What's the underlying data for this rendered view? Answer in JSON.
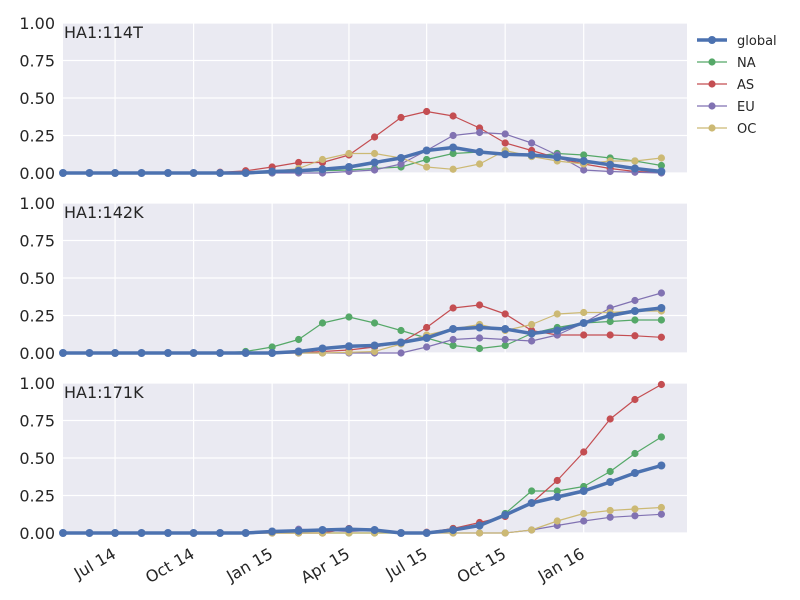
{
  "chart_data": {
    "type": "line",
    "x": [
      "2014-05-01",
      "2014-06-01",
      "2014-07-01",
      "2014-08-01",
      "2014-09-01",
      "2014-10-01",
      "2014-11-01",
      "2014-12-01",
      "2015-01-01",
      "2015-02-01",
      "2015-03-01",
      "2015-04-01",
      "2015-05-01",
      "2015-06-01",
      "2015-07-01",
      "2015-08-01",
      "2015-09-01",
      "2015-10-01",
      "2015-11-01",
      "2015-12-01",
      "2016-01-01",
      "2016-02-01",
      "2016-03-01",
      "2016-04-01"
    ],
    "x_ticks": [
      {
        "date": "2014-07-01",
        "label": "Jul 14"
      },
      {
        "date": "2014-10-01",
        "label": "Oct 14"
      },
      {
        "date": "2015-01-01",
        "label": "Jan 15"
      },
      {
        "date": "2015-04-01",
        "label": "Apr 15"
      },
      {
        "date": "2015-07-01",
        "label": "Jul 15"
      },
      {
        "date": "2015-10-01",
        "label": "Oct 15"
      },
      {
        "date": "2016-01-01",
        "label": "Jan 16"
      }
    ],
    "xlim": [
      "2014-05-01",
      "2016-05-01"
    ],
    "ylim": [
      0,
      1
    ],
    "y_ticks": [
      "0.00",
      "0.25",
      "0.50",
      "0.75",
      "1.00"
    ],
    "grid": true,
    "legend_position": "top-right, outside",
    "legend": [
      "global",
      "NA",
      "AS",
      "EU",
      "OC"
    ],
    "colors": {
      "global": "#4c72b0",
      "NA": "#55a868",
      "AS": "#c44e52",
      "EU": "#8172b2",
      "OC": "#ccb974"
    },
    "panels": [
      {
        "title": "HA1:114T",
        "series": [
          {
            "name": "global",
            "values": [
              0,
              0,
              0,
              0,
              0,
              0,
              0,
              0,
              0.01,
              0.015,
              0.025,
              0.04,
              0.07,
              0.1,
              0.15,
              0.17,
              0.14,
              0.125,
              0.12,
              0.105,
              0.08,
              0.055,
              0.03,
              0.01
            ]
          },
          {
            "name": "NA",
            "values": [
              0,
              0,
              0,
              0,
              0,
              0,
              0,
              0,
              0,
              0.01,
              0.015,
              0.02,
              0.03,
              0.04,
              0.09,
              0.13,
              0.14,
              0.13,
              0.11,
              0.13,
              0.12,
              0.1,
              0.08,
              0.05
            ]
          },
          {
            "name": "AS",
            "values": [
              0,
              0,
              0,
              0,
              0,
              0,
              0.005,
              0.015,
              0.04,
              0.07,
              0.07,
              0.12,
              0.24,
              0.37,
              0.41,
              0.38,
              0.3,
              0.2,
              0.15,
              0.1,
              0.06,
              0.03,
              0.01,
              0.005
            ]
          },
          {
            "name": "EU",
            "values": [
              0,
              0,
              0,
              0,
              0,
              0,
              0,
              0,
              0,
              0,
              0,
              0.01,
              0.02,
              0.06,
              0.15,
              0.25,
              0.27,
              0.26,
              0.2,
              0.12,
              0.02,
              0.01,
              0.005,
              0
            ]
          },
          {
            "name": "OC",
            "values": [
              0,
              0,
              0,
              0,
              0,
              0,
              0,
              0,
              0.01,
              0.03,
              0.09,
              0.13,
              0.13,
              0.1,
              0.04,
              0.025,
              0.06,
              0.15,
              0.11,
              0.08,
              0.06,
              0.08,
              0.08,
              0.1
            ]
          }
        ]
      },
      {
        "title": "HA1:142K",
        "series": [
          {
            "name": "global",
            "values": [
              0,
              0,
              0,
              0,
              0,
              0,
              0,
              0,
              0,
              0.01,
              0.03,
              0.045,
              0.05,
              0.07,
              0.1,
              0.16,
              0.17,
              0.16,
              0.13,
              0.15,
              0.2,
              0.25,
              0.28,
              0.3
            ]
          },
          {
            "name": "NA",
            "values": [
              0,
              0,
              0,
              0,
              0,
              0,
              0,
              0.01,
              0.04,
              0.09,
              0.2,
              0.24,
              0.2,
              0.15,
              0.1,
              0.05,
              0.03,
              0.05,
              0.13,
              0.17,
              0.2,
              0.21,
              0.22,
              0.22
            ]
          },
          {
            "name": "AS",
            "values": [
              0,
              0,
              0,
              0,
              0,
              0,
              0,
              0,
              0,
              0,
              0.01,
              0.02,
              0.04,
              0.07,
              0.17,
              0.3,
              0.32,
              0.26,
              0.15,
              0.12,
              0.12,
              0.12,
              0.115,
              0.105
            ]
          },
          {
            "name": "EU",
            "values": [
              0,
              0,
              0,
              0,
              0,
              0,
              0,
              0,
              0,
              0,
              0,
              0,
              0,
              0,
              0.04,
              0.09,
              0.1,
              0.09,
              0.08,
              0.12,
              0.2,
              0.3,
              0.35,
              0.4
            ]
          },
          {
            "name": "OC",
            "values": [
              0,
              0,
              0,
              0,
              0,
              0,
              0,
              0,
              0,
              0,
              0,
              0.005,
              0.01,
              0.06,
              0.12,
              0.16,
              0.19,
              0.15,
              0.19,
              0.26,
              0.27,
              0.27,
              0.28,
              0.28
            ]
          }
        ]
      },
      {
        "title": "HA1:171K",
        "series": [
          {
            "name": "global",
            "values": [
              0,
              0,
              0,
              0,
              0,
              0,
              0,
              0,
              0.01,
              0.015,
              0.02,
              0.025,
              0.02,
              0,
              0,
              0.02,
              0.05,
              0.12,
              0.2,
              0.24,
              0.28,
              0.34,
              0.4,
              0.45
            ]
          },
          {
            "name": "NA",
            "values": [
              0,
              0,
              0,
              0,
              0,
              0,
              0,
              0,
              0,
              0,
              0,
              0,
              0,
              0,
              0,
              0.03,
              0.05,
              0.13,
              0.28,
              0.28,
              0.31,
              0.41,
              0.53,
              0.64
            ]
          },
          {
            "name": "AS",
            "values": [
              0,
              0,
              0,
              0,
              0,
              0,
              0,
              0,
              0,
              0,
              0,
              0.03,
              0.02,
              0,
              0.005,
              0.03,
              0.07,
              0.11,
              0.2,
              0.35,
              0.54,
              0.76,
              0.89,
              0.99
            ]
          },
          {
            "name": "EU",
            "values": [
              0,
              0,
              0,
              0,
              0,
              0,
              0,
              0,
              0.005,
              0.025,
              0.02,
              0.01,
              0.02,
              0,
              0,
              0,
              0,
              0,
              0.02,
              0.05,
              0.08,
              0.105,
              0.115,
              0.125
            ]
          },
          {
            "name": "OC",
            "values": [
              0,
              0,
              0,
              0,
              0,
              0,
              0,
              0,
              0,
              0,
              0,
              0,
              0,
              0,
              0,
              0,
              0,
              0,
              0.02,
              0.08,
              0.13,
              0.15,
              0.16,
              0.17
            ]
          }
        ]
      }
    ]
  }
}
